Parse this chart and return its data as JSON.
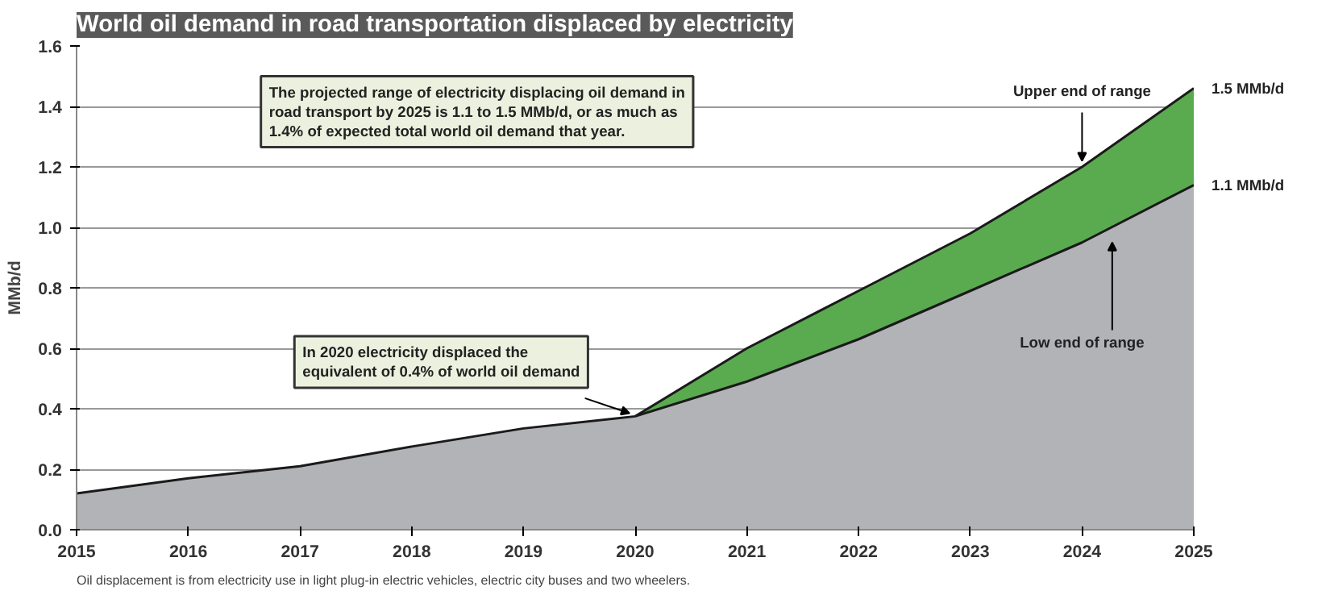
{
  "chart_data": {
    "type": "area",
    "title": "World oil demand in road transportation displaced by electricity",
    "ylabel": "MMb/d",
    "x": [
      2015,
      2016,
      2017,
      2018,
      2019,
      2020,
      2021,
      2022,
      2023,
      2024,
      2025
    ],
    "series": [
      {
        "color": "#5aab4f",
        "x": [
          2020,
          2021,
          2022,
          2023,
          2024,
          2025
        ],
        "values": [
          0.375,
          0.6,
          0.79,
          0.98,
          1.2,
          1.46
        ]
      },
      {
        "color": "#b2b3b7",
        "values": [
          0.12,
          0.17,
          0.21,
          0.275,
          0.335,
          0.375,
          0.49,
          0.63,
          0.79,
          0.95,
          1.14
        ]
      }
    ],
    "xlim": [
      2015,
      2025
    ],
    "xticks": [
      2015,
      2016,
      2017,
      2018,
      2019,
      2020,
      2021,
      2022,
      2023,
      2024,
      2025
    ],
    "ylim": [
      0,
      1.6
    ],
    "yticks": [
      {
        "value": 0,
        "label": "0.0"
      },
      {
        "value": 0.2,
        "label": "0.2"
      },
      {
        "value": 0.4,
        "label": "0.4"
      },
      {
        "value": 0.6,
        "label": "0.6"
      },
      {
        "value": 0.8,
        "label": "0.8"
      },
      {
        "value": 1,
        "label": "1.0"
      },
      {
        "value": 1.2,
        "label": "1.2"
      },
      {
        "value": 1.4,
        "label": "1.4"
      },
      {
        "value": 1.6,
        "label": "1.6"
      }
    ],
    "grid": "y",
    "annotations": [
      "The projected range of electricity displacing oil demand in road transport by 2025 is 1.1 to 1.5 MMb/d, or as much as 1.4% of expected total world oil demand that year.",
      {
        "text": "In 2020 electricity displaced the equivalent of 0.4% of world oil demand",
        "x": 2020,
        "y": 0.375
      },
      {
        "text": "Upper end of range",
        "x": 2024,
        "y": 1.2
      },
      "Low end of range",
      {
        "text": "1.5 MMb/d",
        "x": 2025,
        "y": 1.46
      },
      {
        "text": "1.1 MMb/d",
        "x": 2025,
        "y": 1.14
      },
      "Oil displacement is from electricity use in light plug-in electric vehicles, electric city buses and two wheelers."
    ]
  }
}
